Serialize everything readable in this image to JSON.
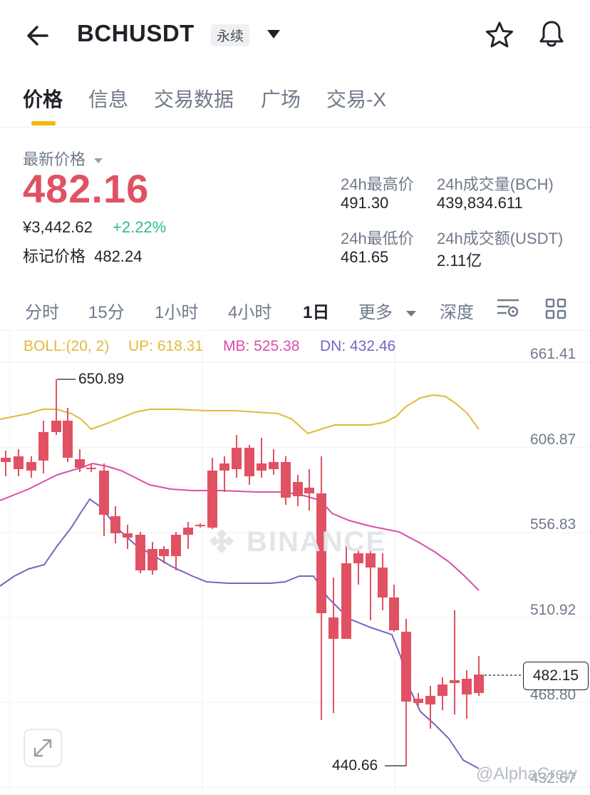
{
  "header": {
    "title": "BCHUSDT",
    "badge": "永续"
  },
  "tabs": [
    {
      "label": "价格"
    },
    {
      "label": "信息"
    },
    {
      "label": "交易数据"
    },
    {
      "label": "广场"
    },
    {
      "label": "交易-X"
    }
  ],
  "price": {
    "last_label": "最新价格",
    "last": "482.16",
    "cny": "¥3,442.62",
    "change": "+2.22%",
    "mark_label": "标记价格",
    "mark": "482.24"
  },
  "stats": {
    "high_label": "24h最高价",
    "high": "491.30",
    "vol_bch_label": "24h成交量(BCH)",
    "vol_bch": "439,834.611",
    "low_label": "24h最低价",
    "low": "461.65",
    "vol_usdt_label": "24h成交额(USDT)",
    "vol_usdt": "2.11亿"
  },
  "timeframes": [
    {
      "label": "分时"
    },
    {
      "label": "15分"
    },
    {
      "label": "1小时"
    },
    {
      "label": "4小时"
    },
    {
      "label": "1日"
    },
    {
      "label": "更多"
    },
    {
      "label": "深度"
    }
  ],
  "boll": {
    "label": "BOLL:(20, 2)",
    "up": "UP: 618.31",
    "mb": "MB: 525.38",
    "dn": "DN: 432.46"
  },
  "chart": {
    "y_labels": [
      "661.41",
      "606.87",
      "556.83",
      "510.92",
      "468.80"
    ],
    "last_price_tag": "482.15",
    "high_annotation": "650.89",
    "low_annotation": "440.66",
    "bottom_partial": "432.67",
    "watermark": "BINANCE",
    "credit": "@AlphaCrew"
  },
  "colors": {
    "up": "#2ebd85",
    "down": "#e05263",
    "boll_up": "#e2b93b",
    "boll_mb": "#d94faa",
    "boll_dn": "#7b62c4",
    "accent": "#f0b90b"
  }
}
